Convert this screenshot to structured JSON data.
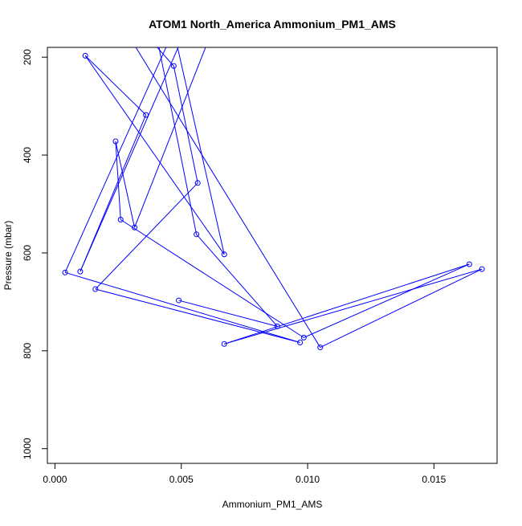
{
  "chart_data": {
    "type": "line",
    "title": "ATOM1 North_America Ammonium_PM1_AMS",
    "xlabel": "Ammonium_PM1_AMS",
    "ylabel": "Pressure (mbar)",
    "xlim": [
      -0.0003,
      0.0175
    ],
    "ylim": [
      1030,
      180
    ],
    "y_reversed": true,
    "x_ticks": [
      "0.000",
      "0.005",
      "0.010",
      "0.015"
    ],
    "x_tick_values": [
      0,
      0.005,
      0.01,
      0.015
    ],
    "y_ticks": [
      "200",
      "400",
      "600",
      "800",
      "1000"
    ],
    "y_tick_values": [
      200,
      400,
      600,
      800,
      1000
    ],
    "grid": false,
    "series": [
      {
        "color": "#0000ff",
        "marker": "open-circle",
        "points": [
          {
            "x": 0.0025,
            "y": 150,
            "marker": false
          },
          {
            "x": 0.006,
            "y": 175,
            "marker": false
          },
          {
            "x": 0.00315,
            "y": 548
          },
          {
            "x": 0.0024,
            "y": 372
          },
          {
            "x": 0.0026,
            "y": 532
          },
          {
            "x": 0.00985,
            "y": 773
          },
          {
            "x": 0.0164,
            "y": 623
          },
          {
            "x": 0.0067,
            "y": 786
          },
          {
            "x": 0.0169,
            "y": 633
          },
          {
            "x": 0.0105,
            "y": 793
          },
          {
            "x": 0.00275,
            "y": 142,
            "marker": false
          },
          {
            "x": 0.0035,
            "y": 148,
            "marker": false
          },
          {
            "x": 0.0047,
            "y": 218
          },
          {
            "x": 0.00565,
            "y": 457
          },
          {
            "x": 0.0016,
            "y": 674
          },
          {
            "x": 0.0097,
            "y": 783
          },
          {
            "x": 0.0004,
            "y": 640
          },
          {
            "x": 0.0047,
            "y": 145,
            "marker": false
          },
          {
            "x": 0.0067,
            "y": 603
          },
          {
            "x": 0.0012,
            "y": 197
          },
          {
            "x": 0.0036,
            "y": 318
          },
          {
            "x": 0.001,
            "y": 638
          },
          {
            "x": 0.0053,
            "y": 130,
            "marker": false
          },
          {
            "x": 0.004,
            "y": 150,
            "marker": false
          },
          {
            "x": 0.0056,
            "y": 562
          },
          {
            "x": 0.0088,
            "y": 750
          },
          {
            "x": 0.0049,
            "y": 697
          }
        ]
      }
    ]
  }
}
